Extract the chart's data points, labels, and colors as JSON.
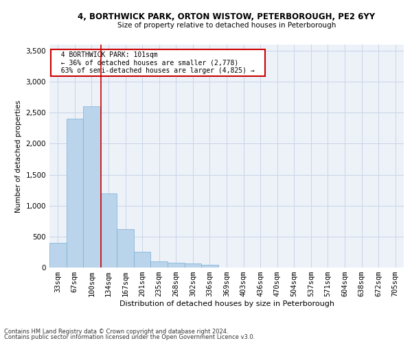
{
  "title1": "4, BORTHWICK PARK, ORTON WISTOW, PETERBOROUGH, PE2 6YY",
  "title2": "Size of property relative to detached houses in Peterborough",
  "xlabel": "Distribution of detached houses by size in Peterborough",
  "ylabel": "Number of detached properties",
  "footnote1": "Contains HM Land Registry data © Crown copyright and database right 2024.",
  "footnote2": "Contains public sector information licensed under the Open Government Licence v3.0.",
  "bar_color": "#bad4eb",
  "bar_edge_color": "#7aafd4",
  "grid_color": "#c8d4e8",
  "background_color": "#edf2f9",
  "annotation_box_color": "#ffffff",
  "annotation_border_color": "#cc0000",
  "vline_color": "#cc0000",
  "categories": [
    "33sqm",
    "67sqm",
    "100sqm",
    "134sqm",
    "167sqm",
    "201sqm",
    "235sqm",
    "268sqm",
    "302sqm",
    "336sqm",
    "369sqm",
    "403sqm",
    "436sqm",
    "470sqm",
    "504sqm",
    "537sqm",
    "571sqm",
    "604sqm",
    "638sqm",
    "672sqm",
    "705sqm"
  ],
  "values": [
    400,
    2400,
    2600,
    1200,
    620,
    255,
    105,
    75,
    65,
    45,
    5,
    5,
    0,
    0,
    0,
    0,
    0,
    0,
    0,
    0,
    0
  ],
  "vline_position": 2.55,
  "annotation_text": "  4 BORTHWICK PARK: 101sqm  \n  ← 36% of detached houses are smaller (2,778)  \n  63% of semi-detached houses are larger (4,825) →  ",
  "ylim": [
    0,
    3600
  ],
  "yticks": [
    0,
    500,
    1000,
    1500,
    2000,
    2500,
    3000,
    3500
  ]
}
